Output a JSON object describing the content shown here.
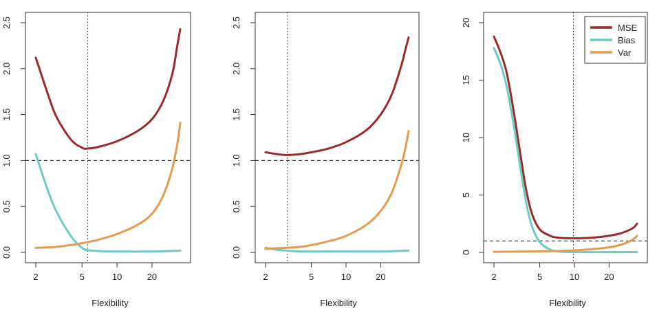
{
  "colors": {
    "mse": "#9b2a2a",
    "bias": "#6fc9c4",
    "var": "#e49a4f",
    "axis": "#333333",
    "reference": "#333333"
  },
  "chart_data": [
    {
      "type": "line",
      "panel": "left",
      "xlabel": "Flexibility",
      "ylabel": "",
      "x_scale": "log",
      "xlim": [
        2,
        35
      ],
      "ylim": [
        0,
        2.5
      ],
      "xticks": [
        2,
        5,
        10,
        20
      ],
      "xtick_labels": [
        "2",
        "5",
        "10",
        "20"
      ],
      "yticks": [
        0,
        0.5,
        1,
        1.5,
        2,
        2.5
      ],
      "ytick_labels": [
        "0.0",
        "0.5",
        "1.0",
        "1.5",
        "2.0",
        "2.5"
      ],
      "hline": 1.0,
      "vline": 5.6,
      "series": [
        {
          "name": "MSE",
          "color_key": "mse",
          "points": [
            [
              2,
              2.12
            ],
            [
              2.5,
              1.75
            ],
            [
              3,
              1.48
            ],
            [
              4,
              1.23
            ],
            [
              5,
              1.14
            ],
            [
              5.6,
              1.13
            ],
            [
              7,
              1.15
            ],
            [
              10,
              1.21
            ],
            [
              15,
              1.32
            ],
            [
              20,
              1.45
            ],
            [
              25,
              1.65
            ],
            [
              30,
              1.95
            ],
            [
              33,
              2.25
            ],
            [
              35,
              2.43
            ]
          ]
        },
        {
          "name": "Bias",
          "color_key": "bias",
          "points": [
            [
              2,
              1.07
            ],
            [
              2.5,
              0.7
            ],
            [
              3,
              0.45
            ],
            [
              4,
              0.18
            ],
            [
              5,
              0.05
            ],
            [
              6,
              0.02
            ],
            [
              10,
              0.01
            ],
            [
              20,
              0.01
            ],
            [
              35,
              0.02
            ]
          ]
        },
        {
          "name": "Var",
          "color_key": "var",
          "points": [
            [
              2,
              0.05
            ],
            [
              3,
              0.06
            ],
            [
              4,
              0.08
            ],
            [
              5,
              0.1
            ],
            [
              7,
              0.14
            ],
            [
              10,
              0.2
            ],
            [
              15,
              0.3
            ],
            [
              20,
              0.42
            ],
            [
              25,
              0.62
            ],
            [
              30,
              0.92
            ],
            [
              33,
              1.18
            ],
            [
              35,
              1.41
            ]
          ]
        }
      ]
    },
    {
      "type": "line",
      "panel": "middle",
      "xlabel": "Flexibility",
      "ylabel": "",
      "x_scale": "log",
      "xlim": [
        2,
        35
      ],
      "ylim": [
        0,
        2.5
      ],
      "xticks": [
        2,
        5,
        10,
        20
      ],
      "xtick_labels": [
        "2",
        "5",
        "10",
        "20"
      ],
      "yticks": [
        0,
        0.5,
        1,
        1.5,
        2,
        2.5
      ],
      "ytick_labels": [
        "0.0",
        "0.5",
        "1.0",
        "1.5",
        "2.0",
        "2.5"
      ],
      "hline": 1.0,
      "vline": 3.1,
      "series": [
        {
          "name": "MSE",
          "color_key": "mse",
          "points": [
            [
              2,
              1.09
            ],
            [
              2.5,
              1.07
            ],
            [
              3.1,
              1.06
            ],
            [
              4,
              1.07
            ],
            [
              5,
              1.09
            ],
            [
              7,
              1.13
            ],
            [
              10,
              1.2
            ],
            [
              15,
              1.33
            ],
            [
              20,
              1.5
            ],
            [
              25,
              1.72
            ],
            [
              30,
              2.02
            ],
            [
              33,
              2.22
            ],
            [
              35,
              2.34
            ]
          ]
        },
        {
          "name": "Bias",
          "color_key": "bias",
          "points": [
            [
              2,
              0.05
            ],
            [
              2.5,
              0.03
            ],
            [
              3,
              0.02
            ],
            [
              4,
              0.01
            ],
            [
              6,
              0.01
            ],
            [
              10,
              0.01
            ],
            [
              20,
              0.01
            ],
            [
              35,
              0.02
            ]
          ]
        },
        {
          "name": "Var",
          "color_key": "var",
          "points": [
            [
              2,
              0.04
            ],
            [
              3,
              0.05
            ],
            [
              4,
              0.06
            ],
            [
              5,
              0.08
            ],
            [
              7,
              0.12
            ],
            [
              10,
              0.18
            ],
            [
              15,
              0.3
            ],
            [
              20,
              0.45
            ],
            [
              25,
              0.65
            ],
            [
              30,
              0.94
            ],
            [
              33,
              1.15
            ],
            [
              35,
              1.32
            ]
          ]
        }
      ]
    },
    {
      "type": "line",
      "panel": "right",
      "xlabel": "Flexibility",
      "ylabel": "",
      "x_scale": "log",
      "xlim": [
        2,
        35
      ],
      "ylim": [
        0,
        20
      ],
      "xticks": [
        2,
        5,
        10,
        20
      ],
      "xtick_labels": [
        "2",
        "5",
        "10",
        "20"
      ],
      "yticks": [
        0,
        5,
        10,
        15,
        20
      ],
      "ytick_labels": [
        "0",
        "5",
        "10",
        "15",
        "20"
      ],
      "hline": 1.0,
      "vline": 9.8,
      "legend": {
        "position": "top-right",
        "entries": [
          "MSE",
          "Bias",
          "Var"
        ]
      },
      "series": [
        {
          "name": "MSE",
          "color_key": "mse",
          "points": [
            [
              2,
              18.8
            ],
            [
              2.3,
              17.3
            ],
            [
              2.6,
              15.5
            ],
            [
              3,
              12.0
            ],
            [
              3.4,
              8.5
            ],
            [
              3.8,
              5.5
            ],
            [
              4.3,
              3.3
            ],
            [
              5,
              2.0
            ],
            [
              6,
              1.5
            ],
            [
              7,
              1.3
            ],
            [
              9.8,
              1.22
            ],
            [
              15,
              1.3
            ],
            [
              20,
              1.45
            ],
            [
              25,
              1.65
            ],
            [
              30,
              1.95
            ],
            [
              33,
              2.2
            ],
            [
              35,
              2.5
            ]
          ]
        },
        {
          "name": "Bias",
          "color_key": "bias",
          "points": [
            [
              2,
              17.8
            ],
            [
              2.3,
              16.3
            ],
            [
              2.6,
              14.3
            ],
            [
              3,
              10.8
            ],
            [
              3.4,
              7.3
            ],
            [
              3.8,
              4.4
            ],
            [
              4.3,
              2.2
            ],
            [
              5,
              0.9
            ],
            [
              6,
              0.3
            ],
            [
              7,
              0.1
            ],
            [
              10,
              0.03
            ],
            [
              20,
              0.02
            ],
            [
              35,
              0.02
            ]
          ]
        },
        {
          "name": "Var",
          "color_key": "var",
          "points": [
            [
              2,
              0.05
            ],
            [
              4,
              0.08
            ],
            [
              7,
              0.12
            ],
            [
              10,
              0.18
            ],
            [
              15,
              0.3
            ],
            [
              20,
              0.45
            ],
            [
              25,
              0.65
            ],
            [
              30,
              0.95
            ],
            [
              33,
              1.2
            ],
            [
              35,
              1.45
            ]
          ]
        }
      ]
    }
  ]
}
